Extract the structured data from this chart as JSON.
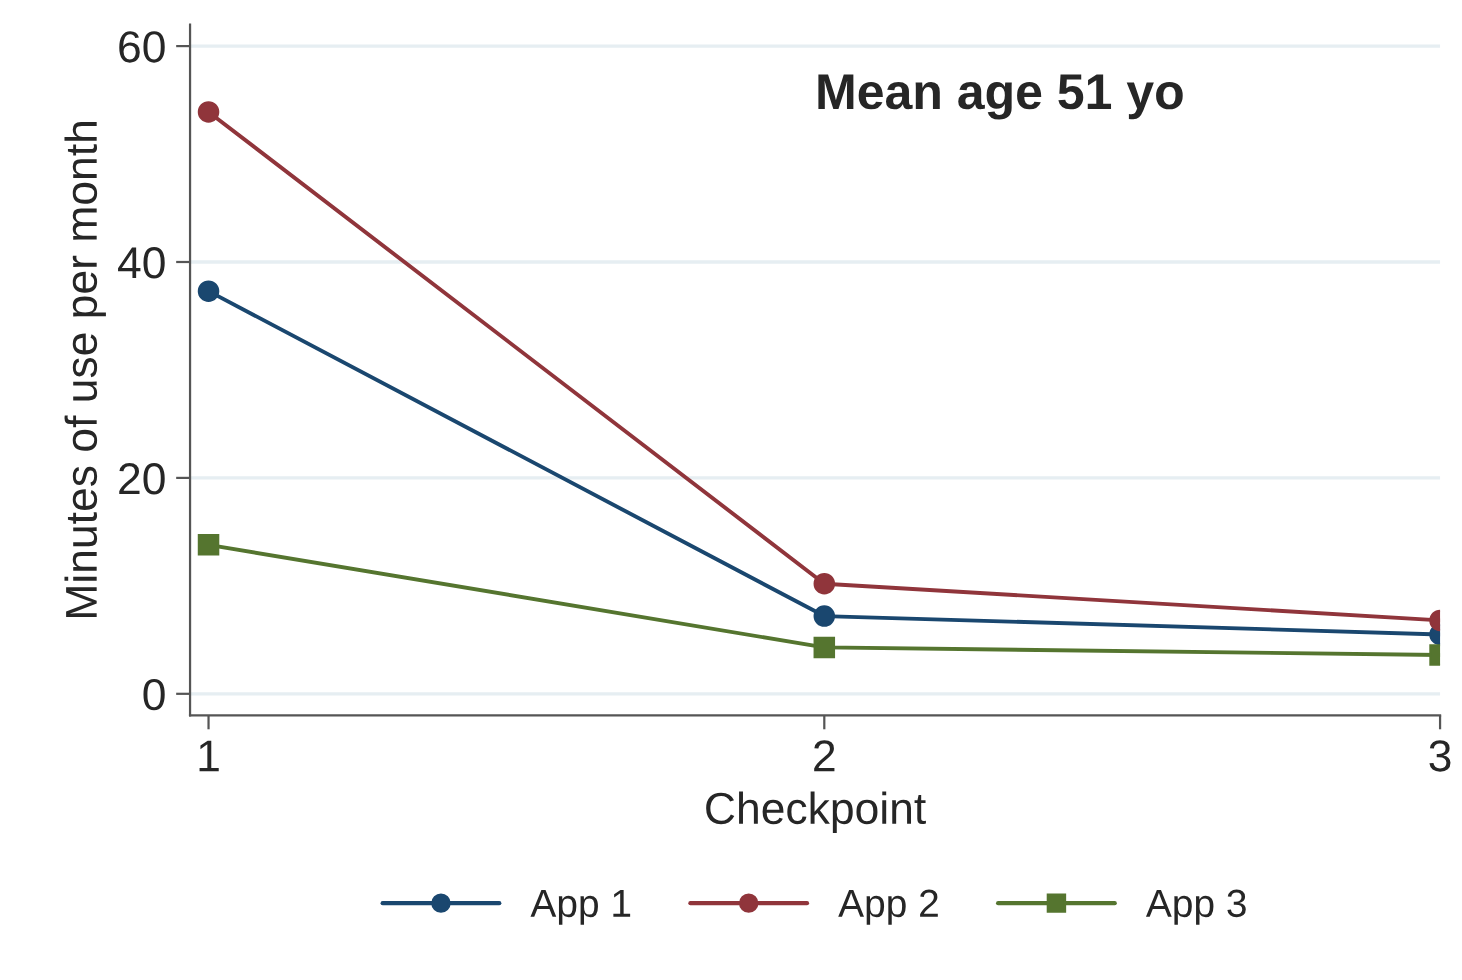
{
  "chart_data": {
    "type": "line",
    "xlabel": "Checkpoint",
    "ylabel": "Minutes of use per month",
    "annotations": [
      "Mean age 51 yo"
    ],
    "x": [
      1,
      2,
      3
    ],
    "xlim": [
      0.97,
      3
    ],
    "xticks": [
      1,
      2,
      3
    ],
    "ylim": [
      -2,
      62
    ],
    "yticks": [
      0,
      20,
      40,
      60
    ],
    "grid": "y",
    "legend": "bottom",
    "line_style": "solid",
    "series": [
      {
        "name": "App 1",
        "color": "#1a476f",
        "marker": "circle",
        "values": [
          37.3,
          7.2,
          5.5
        ]
      },
      {
        "name": "App 2",
        "color": "#90353b",
        "marker": "circle",
        "values": [
          53.9,
          10.2,
          6.8
        ]
      },
      {
        "name": "App 3",
        "color": "#55752f",
        "marker": "square",
        "values": [
          13.8,
          4.3,
          3.6
        ]
      }
    ]
  }
}
